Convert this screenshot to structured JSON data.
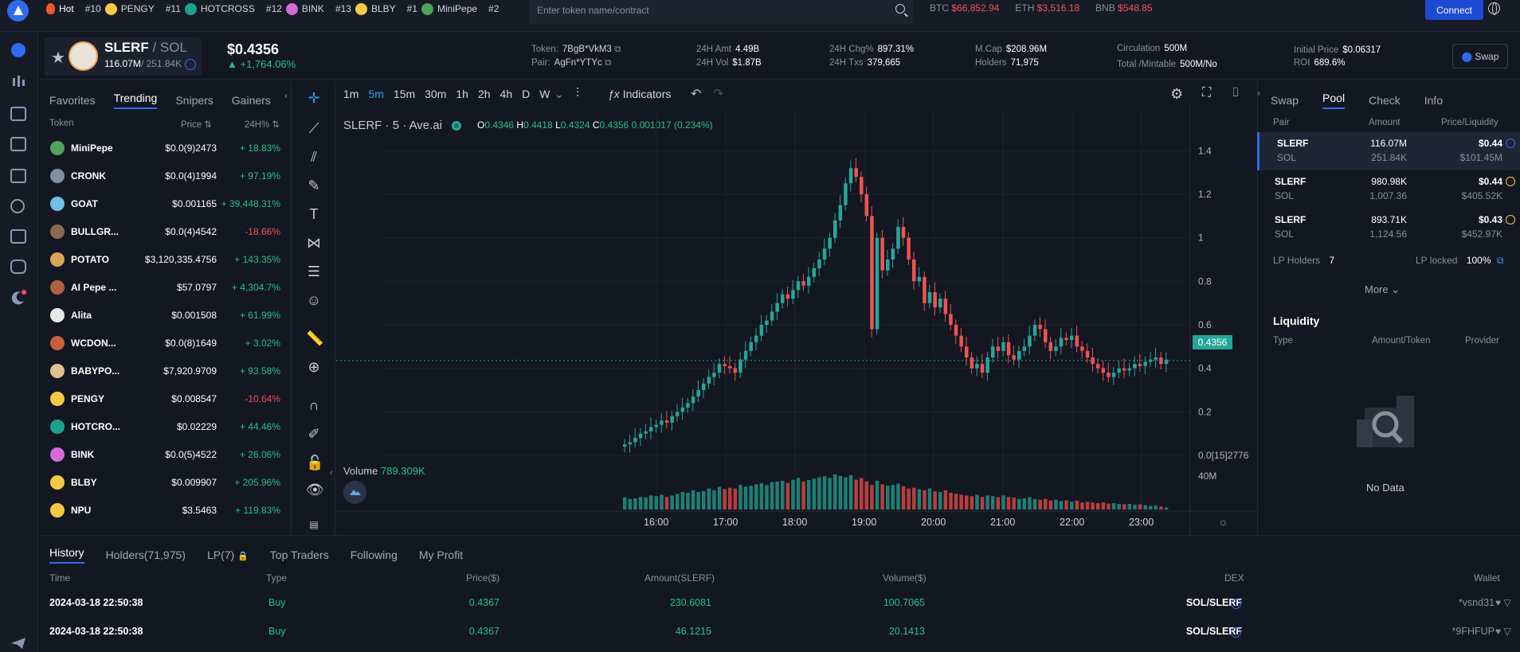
{
  "ticker": [
    {
      "rank": "Hot",
      "name": "",
      "color": "#f05a28"
    },
    {
      "rank": "#10",
      "name": "PENGY",
      "color": "#f6c944"
    },
    {
      "rank": "#11",
      "name": "HOTCROSS",
      "color": "#1aa38c"
    },
    {
      "rank": "#12",
      "name": "BINK",
      "color": "#d26bd8"
    },
    {
      "rank": "#13",
      "name": "BLBY",
      "color": "#f6c944"
    },
    {
      "rank": "#1",
      "name": "MiniPepe",
      "color": "#4da35a"
    },
    {
      "rank": "#2",
      "name": "",
      "color": ""
    }
  ],
  "search": {
    "placeholder": "Enter token name/contract"
  },
  "market": [
    {
      "sym": "BTC",
      "price": "$66,852.94"
    },
    {
      "sym": "ETH",
      "price": "$3,516.18"
    },
    {
      "sym": "BNB",
      "price": "$548.85"
    }
  ],
  "connect_label": "Connect",
  "token": {
    "name": "SLERF",
    "quote": "/ SOL",
    "sub_main": "116.07M",
    "sub_second": "/ 251.84K",
    "price": "$0.4356",
    "change": "+1,764.06%",
    "token_label": "Token:",
    "token_addr": "7BgB*VkM3",
    "pair_label": "Pair:",
    "pair_addr": "AgFn*YTYc"
  },
  "stats": [
    {
      "k1": "24H Amt",
      "v1": "4.49B",
      "k2": "24H Vol",
      "v2": "$1.87B"
    },
    {
      "k1": "24H Chg%",
      "v1": "897.31%",
      "k2": "24H Txs",
      "v2": "379,665"
    },
    {
      "k1": "M.Cap",
      "v1": "$208.96M",
      "k2": "Holders",
      "v2": "71,975"
    },
    {
      "k1": "Circulation",
      "v1": "500M",
      "k2": "Total /Mintable",
      "v2": "500M/No"
    },
    {
      "k1": "Initial Price",
      "v1": "$0.06317",
      "k2": "ROI",
      "v2": "689.6%"
    }
  ],
  "swap_label": "Swap",
  "list_tabs": [
    "Favorites",
    "Trending",
    "Snipers",
    "Gainers"
  ],
  "list_head": {
    "token": "Token",
    "price": "Price",
    "chg": "24H%"
  },
  "tokens": [
    {
      "name": "MiniPepe",
      "price": "$0.0(9)2473",
      "chg": "+ 18.83%",
      "up": true,
      "color": "#4da35a"
    },
    {
      "name": "CRONK",
      "price": "$0.0(4)1994",
      "chg": "+ 97.19%",
      "up": true,
      "color": "#7f8fa8"
    },
    {
      "name": "GOAT",
      "price": "$0.001165",
      "chg": "+ 39,448.31%",
      "up": true,
      "color": "#6fc1e6"
    },
    {
      "name": "BULLGR...",
      "price": "$0.0(4)4542",
      "chg": "-18.66%",
      "up": false,
      "color": "#8a6a4a"
    },
    {
      "name": "POTATO",
      "price": "$3,120,335.4756",
      "chg": "+ 143.35%",
      "up": true,
      "color": "#d9a35a"
    },
    {
      "name": "AI Pepe ...",
      "price": "$57.0797",
      "chg": "+ 4,304.7%",
      "up": true,
      "color": "#b06040"
    },
    {
      "name": "Alita",
      "price": "$0.001508",
      "chg": "+ 61.99%",
      "up": true,
      "color": "#e8e8e8"
    },
    {
      "name": "WCDON...",
      "price": "$0.0(8)1649",
      "chg": "+ 3.02%",
      "up": true,
      "color": "#c8603a"
    },
    {
      "name": "BABYPO...",
      "price": "$7,920.9709",
      "chg": "+ 93.58%",
      "up": true,
      "color": "#e0c090"
    },
    {
      "name": "PENGY",
      "price": "$0.008547",
      "chg": "-10.64%",
      "up": false,
      "color": "#f6c944"
    },
    {
      "name": "HOTCRO...",
      "price": "$0.02229",
      "chg": "+ 44.46%",
      "up": true,
      "color": "#1aa38c"
    },
    {
      "name": "BINK",
      "price": "$0.0(5)4522",
      "chg": "+ 26.06%",
      "up": true,
      "color": "#d26bd8"
    },
    {
      "name": "BLBY",
      "price": "$0.009907",
      "chg": "+ 205.96%",
      "up": true,
      "color": "#f6c944"
    },
    {
      "name": "NPU",
      "price": "$3.5463",
      "chg": "+ 119.83%",
      "up": true,
      "color": "#f6c944"
    }
  ],
  "timeframes": [
    "1m",
    "5m",
    "15m",
    "30m",
    "1h",
    "2h",
    "4h",
    "D",
    "W"
  ],
  "active_timeframe": "5m",
  "indicators_label": "Indicators",
  "chart_legend": {
    "symbol": "SLERF",
    "interval": "5",
    "source": "Ave.ai"
  },
  "ohlc": {
    "O": "0.4346",
    "H": "0.4418",
    "L": "0.4324",
    "C": "0.4356",
    "chg": "0.001017 (0.234%)"
  },
  "volume_label": "Volume",
  "volume_value": "789.309K",
  "current_price_tag": "0.4356",
  "chart_data": {
    "type": "candlestick",
    "y_ticks": [
      "1.4",
      "1.2",
      "1",
      "0.8",
      "0.6",
      "0.4",
      "0.2",
      "0.0[15]2776"
    ],
    "y_range": [
      0,
      1.5
    ],
    "x_ticks": [
      "16:00",
      "17:00",
      "18:00",
      "19:00",
      "20:00",
      "21:00",
      "22:00",
      "23:00"
    ],
    "volume_tick": "40M",
    "close_path": [
      0.05,
      0.06,
      0.08,
      0.1,
      0.11,
      0.13,
      0.14,
      0.16,
      0.15,
      0.18,
      0.2,
      0.22,
      0.24,
      0.27,
      0.3,
      0.33,
      0.36,
      0.38,
      0.42,
      0.41,
      0.4,
      0.38,
      0.44,
      0.48,
      0.52,
      0.55,
      0.6,
      0.62,
      0.66,
      0.7,
      0.74,
      0.72,
      0.76,
      0.8,
      0.78,
      0.82,
      0.86,
      0.9,
      0.95,
      1.0,
      1.08,
      1.15,
      1.25,
      1.32,
      1.28,
      1.2,
      1.1,
      0.58,
      1.0,
      0.85,
      0.9,
      0.95,
      1.05,
      1.0,
      0.9,
      0.8,
      0.82,
      0.7,
      0.75,
      0.68,
      0.72,
      0.65,
      0.6,
      0.55,
      0.5,
      0.45,
      0.4,
      0.42,
      0.38,
      0.45,
      0.5,
      0.48,
      0.52,
      0.46,
      0.44,
      0.48,
      0.5,
      0.55,
      0.6,
      0.58,
      0.52,
      0.48,
      0.5,
      0.54,
      0.53,
      0.55,
      0.5,
      0.48,
      0.45,
      0.42,
      0.4,
      0.38,
      0.36,
      0.38,
      0.4,
      0.39,
      0.4,
      0.42,
      0.41,
      0.43,
      0.44,
      0.45,
      0.42,
      0.44
    ],
    "volume_path": [
      0.35,
      0.3,
      0.32,
      0.36,
      0.34,
      0.4,
      0.38,
      0.42,
      0.36,
      0.4,
      0.45,
      0.5,
      0.48,
      0.55,
      0.5,
      0.52,
      0.6,
      0.55,
      0.65,
      0.58,
      0.62,
      0.6,
      0.7,
      0.65,
      0.68,
      0.72,
      0.75,
      0.7,
      0.78,
      0.8,
      0.82,
      0.76,
      0.85,
      0.9,
      0.8,
      0.84,
      0.88,
      0.92,
      0.95,
      0.9,
      1.0,
      0.96,
      0.92,
      0.98,
      0.85,
      0.9,
      0.8,
      0.7,
      0.82,
      0.72,
      0.68,
      0.7,
      0.74,
      0.66,
      0.6,
      0.62,
      0.58,
      0.55,
      0.6,
      0.52,
      0.5,
      0.55,
      0.48,
      0.45,
      0.42,
      0.4,
      0.38,
      0.42,
      0.36,
      0.4,
      0.38,
      0.35,
      0.4,
      0.36,
      0.34,
      0.3,
      0.32,
      0.35,
      0.3,
      0.28,
      0.3,
      0.26,
      0.28,
      0.24,
      0.26,
      0.22,
      0.25,
      0.2,
      0.22,
      0.2,
      0.18,
      0.2,
      0.17,
      0.18,
      0.16,
      0.15,
      0.16,
      0.14,
      0.15,
      0.12,
      0.1,
      0.12,
      0.08,
      0.06
    ]
  },
  "pool_tabs": [
    "Swap",
    "Pool",
    "Check",
    "Info"
  ],
  "pool_head": {
    "pair": "Pair",
    "amount": "Amount",
    "price": "Price/Liquidity"
  },
  "pools": [
    {
      "a": "SLERF",
      "b": "SOL",
      "amt1": "116.07M",
      "amt2": "251.84K",
      "price": "$0.44",
      "liq": "$101.45M",
      "selected": true
    },
    {
      "a": "SLERF",
      "b": "SOL",
      "amt1": "980.98K",
      "amt2": "1,007.36",
      "price": "$0.44",
      "liq": "$405.52K",
      "selected": false
    },
    {
      "a": "SLERF",
      "b": "SOL",
      "amt1": "893.71K",
      "amt2": "1,124.56",
      "price": "$0.43",
      "liq": "$452.97K",
      "selected": false
    }
  ],
  "lp": {
    "holders_label": "LP Holders",
    "holders": "7",
    "locked_label": "LP locked",
    "locked": "100%"
  },
  "more_label": "More",
  "liquidity": {
    "title": "Liquidity",
    "type": "Type",
    "amount": "Amount/Token",
    "provider": "Provider",
    "empty": "No Data"
  },
  "history_tabs": [
    "History",
    "Holders(71,975)",
    "LP(7)",
    "Top Traders",
    "Following",
    "My Profit"
  ],
  "history_head": {
    "time": "Time",
    "type": "Type",
    "price": "Price($)",
    "amount": "Amount(SLERF)",
    "volume": "Volume($)",
    "dex": "DEX",
    "wallet": "Wallet"
  },
  "history": [
    {
      "time": "2024-03-18 22:50:38",
      "type": "Buy",
      "price": "0.4367",
      "amount": "230.6081",
      "volume": "100.7065",
      "dex": "SOL/SLERF",
      "wallet": "*vsnd31"
    },
    {
      "time": "2024-03-18 22:50:38",
      "type": "Buy",
      "price": "0.4367",
      "amount": "46.1215",
      "volume": "20.1413",
      "dex": "SOL/SLERF",
      "wallet": "*9FHFUP"
    }
  ]
}
